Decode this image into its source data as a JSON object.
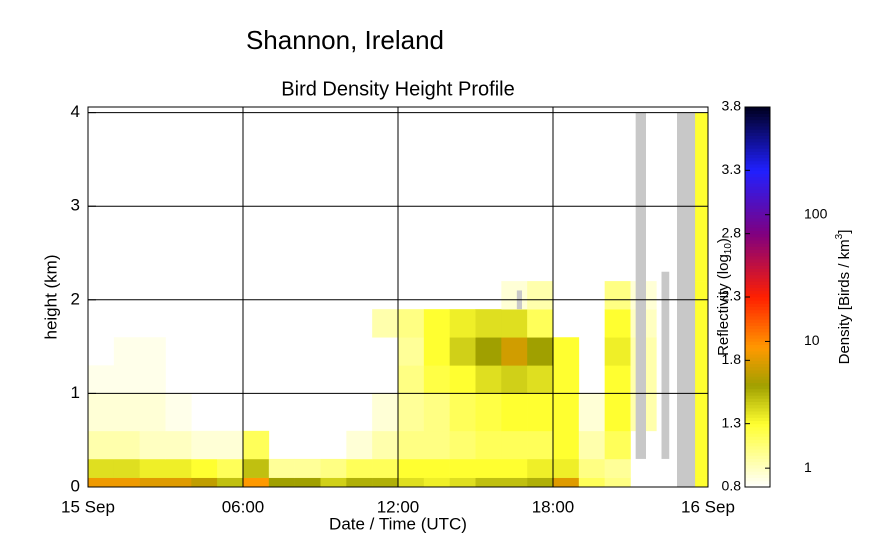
{
  "chart_data": {
    "type": "heatmap",
    "title": "Shannon, Ireland",
    "subtitle": "Bird Density Height Profile",
    "x_label": "Date / Time (UTC)",
    "y_label": "height (km)",
    "xlim": [
      0,
      24
    ],
    "xticks": [
      {
        "value": 0,
        "label": "15 Sep"
      },
      {
        "value": 6,
        "label": "06:00"
      },
      {
        "value": 12,
        "label": "12:00"
      },
      {
        "value": 18,
        "label": "18:00"
      },
      {
        "value": 24,
        "label": "16 Sep"
      }
    ],
    "ylim": [
      0,
      4.06
    ],
    "yticks": [
      0,
      1,
      2,
      3,
      4
    ],
    "grid": true,
    "x_edges": [
      0,
      1,
      2,
      3,
      4,
      5,
      6,
      7,
      8,
      9,
      10,
      11,
      12,
      13,
      14,
      15,
      16,
      17,
      18,
      19,
      20,
      21,
      22,
      23,
      24
    ],
    "y_edges": [
      0,
      0.1,
      0.3,
      0.6,
      1.0,
      1.3,
      1.6,
      1.9,
      2.2,
      4.0
    ],
    "z": [
      [
        1.85,
        1.85,
        1.8,
        1.8,
        1.7,
        1.5,
        1.9,
        1.6,
        1.6,
        1.45,
        1.55,
        1.55,
        1.4,
        1.35,
        1.4,
        1.5,
        1.5,
        1.55,
        1.8,
        1.2,
        1.1,
        null,
        null,
        1.3
      ],
      [
        1.4,
        1.4,
        1.35,
        1.35,
        1.3,
        1.2,
        1.5,
        1.05,
        1.05,
        1.1,
        1.2,
        1.2,
        1.3,
        1.3,
        1.3,
        1.3,
        1.3,
        1.35,
        1.35,
        1.1,
        1.05,
        null,
        null,
        1.3
      ],
      [
        1.0,
        1.0,
        0.95,
        0.95,
        0.9,
        0.9,
        1.2,
        null,
        null,
        null,
        0.9,
        1.0,
        1.1,
        1.1,
        1.15,
        1.2,
        1.2,
        1.2,
        1.3,
        1.0,
        1.2,
        null,
        null,
        1.3
      ],
      [
        0.9,
        0.9,
        0.9,
        0.85,
        null,
        null,
        null,
        null,
        null,
        null,
        null,
        0.9,
        1.05,
        1.1,
        1.2,
        1.25,
        1.3,
        1.3,
        1.3,
        0.9,
        1.3,
        1.0,
        null,
        1.3
      ],
      [
        0.85,
        0.85,
        0.85,
        null,
        null,
        null,
        null,
        null,
        null,
        null,
        null,
        null,
        1.1,
        1.25,
        1.3,
        1.4,
        1.45,
        1.4,
        1.3,
        null,
        1.3,
        1.0,
        null,
        1.3
      ],
      [
        null,
        0.85,
        0.85,
        null,
        null,
        null,
        null,
        null,
        null,
        null,
        null,
        null,
        1.05,
        1.3,
        1.45,
        1.6,
        1.75,
        1.6,
        1.3,
        null,
        1.35,
        1.0,
        null,
        1.3
      ],
      [
        null,
        null,
        null,
        null,
        null,
        null,
        null,
        null,
        null,
        null,
        null,
        1.0,
        1.1,
        1.3,
        1.35,
        1.4,
        1.4,
        1.2,
        null,
        null,
        1.3,
        0.95,
        null,
        1.3
      ],
      [
        null,
        null,
        null,
        null,
        null,
        null,
        null,
        null,
        null,
        null,
        null,
        null,
        null,
        null,
        null,
        null,
        0.9,
        1.0,
        null,
        null,
        1.1,
        0.9,
        null,
        1.3
      ],
      [
        null,
        null,
        null,
        null,
        null,
        null,
        null,
        null,
        null,
        null,
        null,
        null,
        null,
        null,
        null,
        null,
        null,
        null,
        null,
        null,
        null,
        null,
        null,
        1.3
      ]
    ],
    "no_data_color": "#c8c8c8",
    "no_data_areas": [
      [
        21.2,
        21.6,
        0.3,
        4.0
      ],
      [
        22.2,
        22.5,
        0.3,
        2.3
      ],
      [
        22.8,
        23.5,
        0,
        4.0
      ],
      [
        16.6,
        16.8,
        1.9,
        2.1
      ]
    ],
    "colormap": [
      [
        0.8,
        "#ffffff"
      ],
      [
        1.3,
        "#ffff30"
      ],
      [
        1.6,
        "#a0a000"
      ],
      [
        1.9,
        "#ff9900"
      ],
      [
        2.3,
        "#ff2000"
      ],
      [
        2.8,
        "#800080"
      ],
      [
        3.3,
        "#2020ff"
      ],
      [
        3.8,
        "#000020"
      ]
    ],
    "colorbar_label": [
      "Reflectivity (log",
      "10",
      ")"
    ],
    "clim": [
      0.8,
      3.8
    ],
    "cticks": [
      0.8,
      1.3,
      1.8,
      2.3,
      2.8,
      3.3,
      3.8
    ],
    "density_label": [
      "Density [Birds / km",
      "3",
      "]"
    ],
    "y2lim": [
      0.71,
      708
    ],
    "y2_log": true,
    "y2ticks": [
      1,
      10,
      100
    ]
  }
}
